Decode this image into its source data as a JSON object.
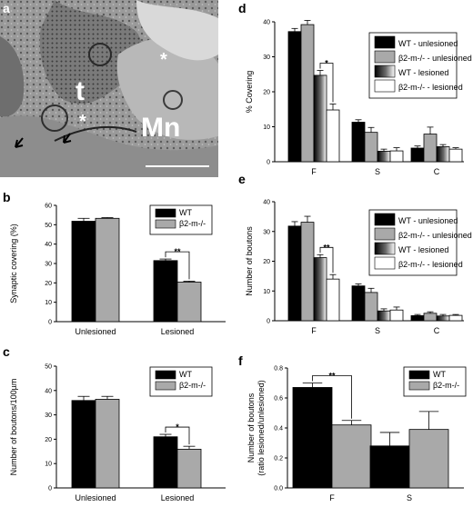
{
  "panel_letters": [
    "a",
    "b",
    "c",
    "d",
    "e",
    "f"
  ],
  "micrograph": {
    "labels": [
      "t",
      "Mn",
      "*",
      "*"
    ]
  },
  "colors": {
    "wt": "#000000",
    "b2m": "#a9a9a9",
    "lesioned_wt": "gradient-black-white",
    "lesioned_b2m": "#ffffff"
  },
  "chart_data": [
    {
      "panel": "b",
      "type": "bar",
      "categories": [
        "Unlesioned",
        "Lesioned"
      ],
      "ylabel": "Synaptic covering (%)",
      "ylim": [
        0,
        60
      ],
      "yticks": [
        0,
        10,
        20,
        30,
        40,
        50,
        60
      ],
      "series": [
        {
          "name": "WT",
          "values": [
            51.8,
            31.5
          ],
          "errors": [
            1.5,
            0.8
          ],
          "fill": "#000000"
        },
        {
          "name": "β2-m-/-",
          "values": [
            53.3,
            20.4
          ],
          "errors": [
            0.4,
            0.5
          ],
          "fill": "#a9a9a9"
        }
      ],
      "legend": "top-right",
      "annotations": [
        {
          "text": "**",
          "between": [
            1,
            0,
            1,
            1
          ]
        }
      ]
    },
    {
      "panel": "c",
      "type": "bar",
      "categories": [
        "Unlesioned",
        "Lesioned"
      ],
      "ylabel": "Number of boutons/100µm",
      "ylim": [
        0,
        50
      ],
      "yticks": [
        0,
        10,
        20,
        30,
        40,
        50
      ],
      "series": [
        {
          "name": "WT",
          "values": [
            35.9,
            21.0
          ],
          "errors": [
            1.7,
            1.0
          ],
          "fill": "#000000"
        },
        {
          "name": "β2-m-/-",
          "values": [
            36.4,
            15.9
          ],
          "errors": [
            1.2,
            1.2
          ],
          "fill": "#a9a9a9"
        }
      ],
      "legend": "top-right",
      "annotations": [
        {
          "text": "*",
          "between": [
            1,
            0,
            1,
            1
          ]
        }
      ]
    },
    {
      "panel": "d",
      "type": "bar",
      "categories": [
        "F",
        "S",
        "C"
      ],
      "ylabel": "% Covering",
      "ylim": [
        0,
        40
      ],
      "yticks": [
        0,
        10,
        20,
        30,
        40
      ],
      "series": [
        {
          "name": "WT - unlesioned",
          "values": [
            37.2,
            11.3,
            3.9
          ],
          "errors": [
            0.9,
            0.7,
            0.6
          ],
          "fill": "#000000"
        },
        {
          "name": "β2-m-/- - unlesioned",
          "values": [
            39.2,
            8.4,
            7.9
          ],
          "errors": [
            1.2,
            1.4,
            2.0
          ],
          "fill": "#a9a9a9"
        },
        {
          "name": "WT - lesioned",
          "values": [
            24.7,
            3.0,
            4.3
          ],
          "errors": [
            1.4,
            0.6,
            0.6
          ],
          "fill": "gradient"
        },
        {
          "name": "β2-m-/- - lesioned",
          "values": [
            14.8,
            3.1,
            3.6
          ],
          "errors": [
            1.7,
            0.9,
            0.4
          ],
          "fill": "#ffffff"
        }
      ],
      "legend": "top-right",
      "annotations": [
        {
          "text": "*",
          "between": [
            0,
            2,
            0,
            3
          ]
        }
      ]
    },
    {
      "panel": "e",
      "type": "bar",
      "categories": [
        "F",
        "S",
        "C"
      ],
      "ylabel": "Number of boutons",
      "ylim": [
        0,
        40
      ],
      "yticks": [
        0,
        10,
        20,
        30,
        40
      ],
      "series": [
        {
          "name": "WT - unlesioned",
          "values": [
            31.8,
            11.7,
            1.7
          ],
          "errors": [
            1.5,
            0.7,
            0.4
          ],
          "fill": "#000000"
        },
        {
          "name": "β2-m-/- - unlesioned",
          "values": [
            33.1,
            9.5,
            2.5
          ],
          "errors": [
            2.0,
            1.4,
            0.5
          ],
          "fill": "#a9a9a9"
        },
        {
          "name": "WT - lesioned",
          "values": [
            21.2,
            3.3,
            1.6
          ],
          "errors": [
            1.0,
            0.7,
            0.5
          ],
          "fill": "gradient"
        },
        {
          "name": "β2-m-/- - lesioned",
          "values": [
            14.0,
            3.6,
            1.8
          ],
          "errors": [
            1.5,
            1.0,
            0.3
          ],
          "fill": "#ffffff"
        }
      ],
      "legend": "top-right",
      "annotations": [
        {
          "text": "**",
          "between": [
            0,
            2,
            0,
            3
          ]
        }
      ]
    },
    {
      "panel": "f",
      "type": "bar",
      "categories": [
        "F",
        "S"
      ],
      "ylabel": "Number of boutons (ratio lesioned/unlesioned)",
      "ylim": [
        0,
        0.8
      ],
      "yticks": [
        0.0,
        0.2,
        0.4,
        0.6,
        0.8
      ],
      "series": [
        {
          "name": "WT",
          "values": [
            0.67,
            0.28
          ],
          "errors": [
            0.03,
            0.09
          ],
          "fill": "#000000"
        },
        {
          "name": "β2-m-/-",
          "values": [
            0.42,
            0.39
          ],
          "errors": [
            0.03,
            0.12
          ],
          "fill": "#a9a9a9"
        }
      ],
      "legend": "top-right",
      "annotations": [
        {
          "text": "**",
          "between": [
            0,
            0,
            0,
            1
          ]
        }
      ]
    }
  ]
}
